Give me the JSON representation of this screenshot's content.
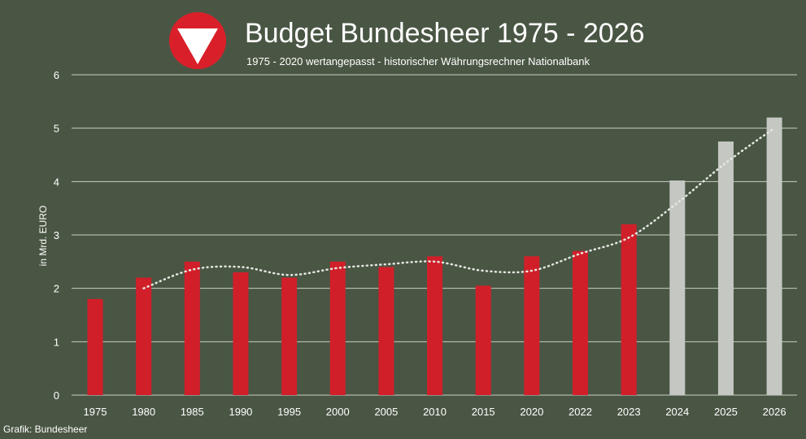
{
  "logo": {
    "name": "austrian-armed-forces-emblem"
  },
  "credit": "Grafik: Bundesheer",
  "colors": {
    "background": "#4a5644",
    "historic_bar": "#d11f2a",
    "forecast_bar": "#c4c7c2",
    "grid": "#c8cdc4",
    "trend": "#e6e8e3",
    "logo_red": "#d9202a",
    "text": "#ffffff"
  },
  "chart_data": {
    "type": "bar",
    "title": "Budget Bundesheer 1975 - 2026",
    "subtitle": "1975 - 2020 wertangepasst - historischer Währungsrechner Nationalbank",
    "xlabel": "",
    "ylabel": "in Mrd. EURO",
    "ylim": [
      0,
      6
    ],
    "yticks": [
      0,
      1,
      2,
      3,
      4,
      5,
      6
    ],
    "grid": true,
    "categories": [
      "1975",
      "1980",
      "1985",
      "1990",
      "1995",
      "2000",
      "2005",
      "2010",
      "2015",
      "2020",
      "2022",
      "2023",
      "2024",
      "2025",
      "2026"
    ],
    "series": [
      {
        "name": "Budget",
        "values": [
          1.8,
          2.2,
          2.5,
          2.3,
          2.2,
          2.5,
          2.4,
          2.6,
          2.05,
          2.6,
          2.7,
          3.2,
          4.02,
          4.75,
          5.2
        ],
        "kind": [
          "historic",
          "historic",
          "historic",
          "historic",
          "historic",
          "historic",
          "historic",
          "historic",
          "historic",
          "historic",
          "historic",
          "historic",
          "forecast",
          "forecast",
          "forecast"
        ]
      },
      {
        "name": "Trend",
        "style": "dotted",
        "values": [
          null,
          2.0,
          2.35,
          2.4,
          2.25,
          2.38,
          2.45,
          2.5,
          2.33,
          2.33,
          2.65,
          2.95,
          3.6,
          4.35,
          5.0
        ]
      }
    ]
  }
}
